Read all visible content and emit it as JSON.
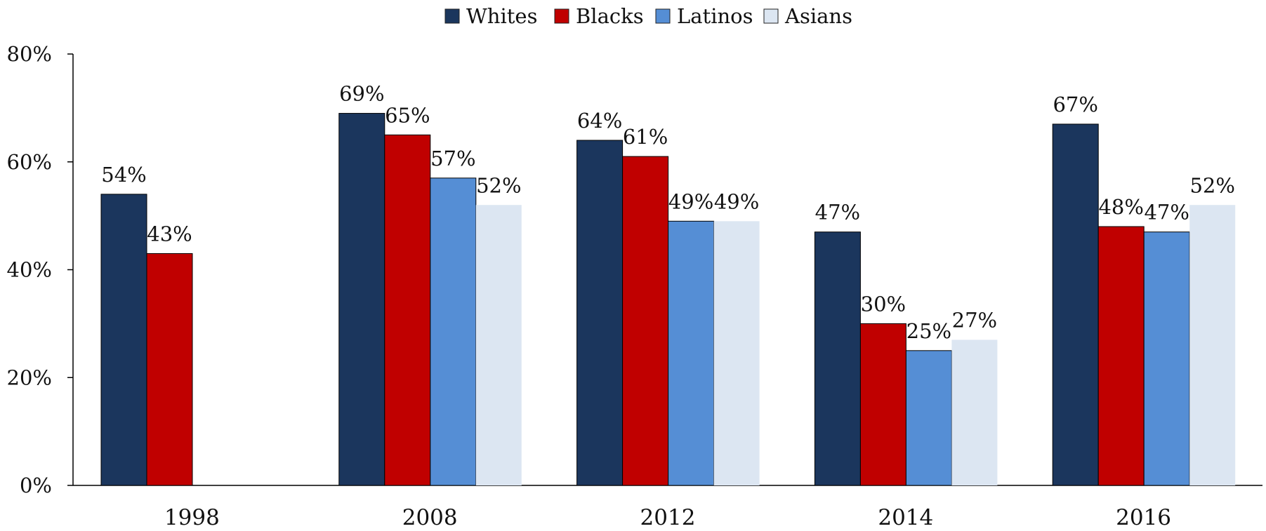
{
  "chart_data": {
    "type": "bar",
    "title": "",
    "xlabel": "",
    "ylabel": "",
    "categories": [
      "1998",
      "2008",
      "2012",
      "2014",
      "2016"
    ],
    "series": [
      {
        "name": "Whites",
        "color": "#1b365d",
        "values": [
          54,
          69,
          64,
          47,
          67
        ],
        "labels": [
          "54%",
          "69%",
          "64%",
          "47%",
          "67%"
        ]
      },
      {
        "name": "Blacks",
        "color": "#c00000",
        "values": [
          43,
          65,
          61,
          30,
          48
        ],
        "labels": [
          "43%",
          "65%",
          "61%",
          "30%",
          "48%"
        ]
      },
      {
        "name": "Latinos",
        "color": "#558ed5",
        "values": [
          null,
          57,
          49,
          25,
          47
        ],
        "labels": [
          "",
          "57%",
          "49%",
          "25%",
          "47%"
        ]
      },
      {
        "name": "Asians",
        "color": "#dce6f2",
        "values": [
          null,
          52,
          49,
          27,
          52
        ],
        "labels": [
          "",
          "52%",
          "49%",
          "27%",
          "52%"
        ]
      }
    ],
    "ylim": [
      0,
      80
    ],
    "yticks": [
      0,
      20,
      40,
      60,
      80
    ],
    "ytick_labels": [
      "0%",
      "20%",
      "40%",
      "60%",
      "80%"
    ],
    "grid": false,
    "legend_position": "top-center"
  }
}
